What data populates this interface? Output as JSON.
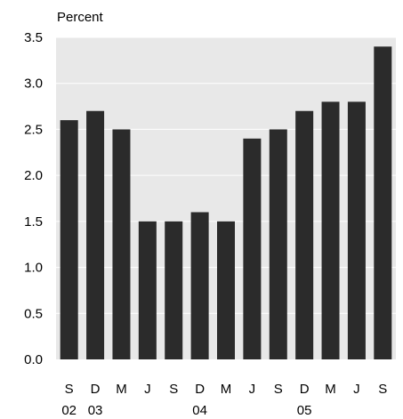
{
  "chart_data": {
    "type": "bar",
    "title": "",
    "unit_label": "Percent",
    "xlabel": "",
    "ylabel": "",
    "categories": [
      "S",
      "D",
      "M",
      "J",
      "S",
      "D",
      "M",
      "J",
      "S",
      "D",
      "M",
      "J",
      "S"
    ],
    "year_labels": [
      "02",
      "03",
      "",
      "",
      "",
      "04",
      "",
      "",
      "",
      "05",
      "",
      "",
      ""
    ],
    "values": [
      2.6,
      2.7,
      2.5,
      1.5,
      1.5,
      1.6,
      1.5,
      2.4,
      2.5,
      2.7,
      2.8,
      2.8,
      3.4
    ],
    "ylim": [
      0,
      3.5
    ],
    "yticks": [
      "0.0",
      "0.5",
      "1.0",
      "1.5",
      "2.0",
      "2.5",
      "3.0",
      "3.5"
    ],
    "grid": true,
    "colors": {
      "bar": "#2b2b2b",
      "plot_background": "#e8e8e8",
      "gridline": "#ffffff"
    }
  }
}
